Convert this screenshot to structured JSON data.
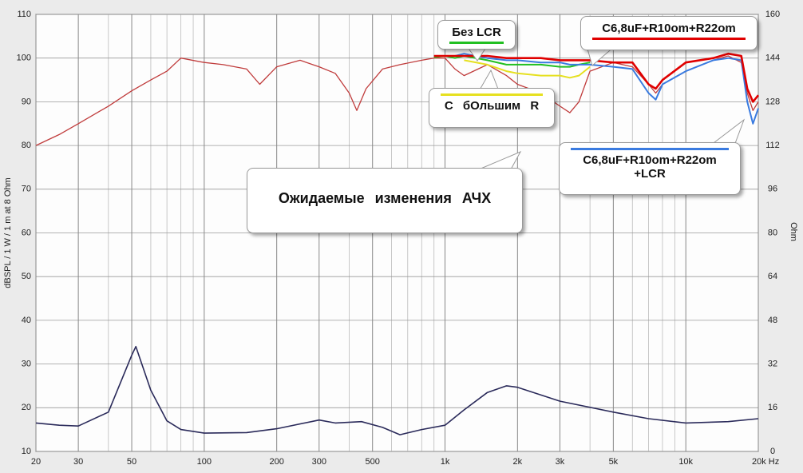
{
  "chart_data": {
    "type": "line",
    "y_label": "dBSPL / 1 W / 1 m at 8 Ohm",
    "y2_label": "Ohm",
    "log_x": true,
    "grid": true,
    "xlim": [
      20,
      20000
    ],
    "ylim": [
      10,
      110
    ],
    "y2lim": [
      0,
      160
    ],
    "xticks": [
      20,
      30,
      50,
      100,
      200,
      300,
      500,
      {
        "value": 1000,
        "label": "1k"
      },
      {
        "value": 2000,
        "label": "2k"
      },
      {
        "value": 3000,
        "label": "3k"
      },
      {
        "value": 5000,
        "label": "5k"
      },
      {
        "value": 10000,
        "label": "10k"
      },
      {
        "value": 20000,
        "label": "20k Hz"
      }
    ],
    "xminor_ticks": [
      40,
      60,
      70,
      80,
      90,
      400,
      600,
      700,
      800,
      900,
      4000,
      6000,
      7000,
      8000,
      9000
    ],
    "yticks": [
      10,
      20,
      30,
      40,
      50,
      60,
      70,
      80,
      90,
      100,
      110
    ],
    "y2ticks": [
      0,
      16,
      32,
      48,
      64,
      80,
      96,
      112,
      128,
      144,
      160
    ],
    "x": [
      20,
      25,
      30,
      40,
      50,
      60,
      70,
      80,
      100,
      120,
      150,
      170,
      200,
      250,
      300,
      350,
      400,
      430,
      470,
      550,
      650,
      800,
      900,
      1000,
      1100,
      1200,
      1500,
      1800,
      2000,
      2500,
      3000,
      3300,
      3600,
      4000,
      5000,
      6000,
      7000,
      7500,
      8000,
      10000,
      13000,
      15000,
      17000,
      18000,
      19000,
      20000
    ],
    "annotations": [
      "Ожидаемые изменения АЧХ"
    ],
    "series": [
      {
        "color": "#c03c3c",
        "values": [
          80,
          82.5,
          85,
          89,
          92.5,
          95,
          97,
          100,
          99,
          98.5,
          97.5,
          94,
          98,
          99.5,
          98,
          96.5,
          92,
          88,
          93,
          97.5,
          98.5,
          99.5,
          100,
          100,
          97.5,
          96,
          98.5,
          96,
          94,
          92,
          89,
          87.5,
          90,
          97,
          99,
          98,
          94,
          92,
          94,
          97,
          99.5,
          100.5,
          99,
          92,
          88,
          90
        ]
      },
      {
        "name": "Без LCR",
        "color": "#22c022",
        "values": [
          null,
          null,
          null,
          null,
          null,
          null,
          null,
          null,
          null,
          null,
          null,
          null,
          null,
          null,
          null,
          null,
          null,
          null,
          null,
          null,
          null,
          null,
          100.2,
          100.5,
          100,
          100.5,
          99.5,
          98.5,
          98.5,
          98.5,
          98,
          98,
          98.5,
          99,
          null,
          null,
          null,
          null,
          null,
          null,
          null,
          null,
          null,
          null,
          null,
          null
        ]
      },
      {
        "name": "С бОльшим R",
        "color": "#e6e020",
        "values": [
          null,
          null,
          null,
          null,
          null,
          null,
          null,
          null,
          null,
          null,
          null,
          null,
          null,
          null,
          null,
          null,
          null,
          null,
          null,
          null,
          null,
          null,
          null,
          null,
          null,
          99.5,
          98.5,
          97,
          96.5,
          96,
          96,
          95.5,
          96,
          98,
          null,
          null,
          null,
          null,
          null,
          null,
          null,
          null,
          null,
          null,
          null,
          null
        ]
      },
      {
        "name": "C6,8uF+R10om+R22om +LCR",
        "color": "#3a7be0",
        "values": [
          null,
          null,
          null,
          null,
          null,
          null,
          null,
          null,
          null,
          null,
          null,
          null,
          null,
          null,
          null,
          null,
          null,
          null,
          null,
          null,
          null,
          null,
          100.5,
          100.5,
          100.5,
          101,
          100,
          99.5,
          99.5,
          99,
          99,
          98.5,
          98.5,
          98.5,
          98,
          97.5,
          92,
          90.5,
          94,
          97,
          99.5,
          100,
          99.5,
          90,
          85,
          88.5
        ]
      },
      {
        "name": "C6,8uF+R10om+R22om",
        "color": "#e00000",
        "values": [
          null,
          null,
          null,
          null,
          null,
          null,
          null,
          null,
          null,
          null,
          null,
          null,
          null,
          null,
          null,
          null,
          null,
          null,
          null,
          null,
          null,
          null,
          100.5,
          100.5,
          100.5,
          100.5,
          100.5,
          100,
          100,
          100,
          99.5,
          99.5,
          99.5,
          99.5,
          99,
          99,
          94,
          93,
          95,
          99,
          100,
          101,
          100.5,
          93,
          90,
          91.5
        ]
      },
      {
        "color": "#2a2a5a",
        "axis": "y2",
        "x": [
          20,
          25,
          30,
          40,
          50,
          52,
          60,
          70,
          80,
          100,
          150,
          200,
          300,
          350,
          450,
          550,
          650,
          800,
          1000,
          1200,
          1500,
          1800,
          2000,
          3000,
          5000,
          7000,
          10000,
          15000,
          20000
        ],
        "values": [
          10.4,
          9.6,
          9.3,
          14.4,
          35.2,
          38.4,
          22.4,
          11.2,
          8,
          6.7,
          6.9,
          8.3,
          11.5,
          10.4,
          10.9,
          8.8,
          6.1,
          8,
          9.6,
          15.2,
          21.6,
          24,
          23.5,
          18.4,
          14.4,
          12,
          10.4,
          10.9,
          12
        ]
      }
    ]
  }
}
